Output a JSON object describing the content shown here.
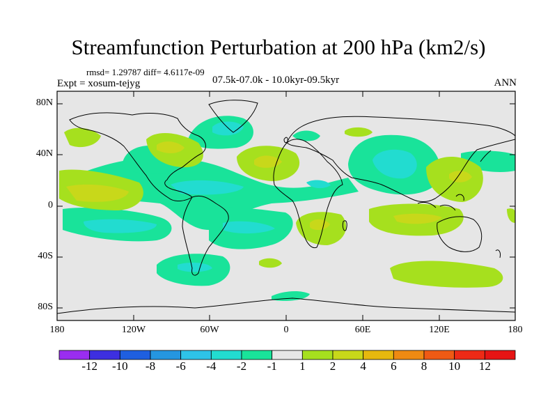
{
  "header": {
    "title": "Streamfunction Perturbation at 200 hPa (km2/s)",
    "stats": "rmsd= 1.29787 diff= 4.6117e-09",
    "experiment": "Expt = xosum-tejyg",
    "period": "07.5k-07.0k - 10.0kyr-09.5kyr",
    "season": "ANN"
  },
  "axes": {
    "lat_labels": [
      "80N",
      "40N",
      "0",
      "40S",
      "80S"
    ],
    "lon_labels": [
      "180",
      "120W",
      "60W",
      "0",
      "60E",
      "120E",
      "180"
    ]
  },
  "colorbar": {
    "labels": [
      "-12",
      "-10",
      "-8",
      "-6",
      "-4",
      "-2",
      "-1",
      "1",
      "2",
      "4",
      "6",
      "8",
      "10",
      "12"
    ],
    "colors": [
      "#9a2df0",
      "#3d2fe0",
      "#1f5fe0",
      "#2596e0",
      "#2ec3e8",
      "#22dcd0",
      "#19e39a",
      "#e6e6e6",
      "#a6e01e",
      "#c8d81a",
      "#e6b80e",
      "#ef8a12",
      "#ef5a14",
      "#ee2a16",
      "#e61414"
    ]
  },
  "map_colors": {
    "background": "#e6e6e6",
    "neg1": "#19e39a",
    "neg2": "#22dcd0",
    "pos1": "#a6e01e",
    "pos2": "#c8d81a"
  }
}
